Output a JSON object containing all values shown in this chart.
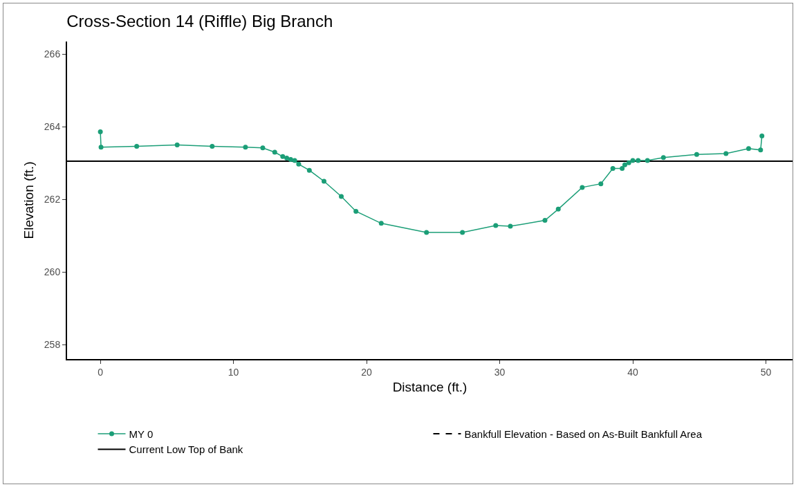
{
  "chart_data": {
    "type": "line",
    "title": "Cross-Section 14 (Riffle) Big Branch",
    "xlabel": "Distance (ft.)",
    "ylabel": "Elevation (ft.)",
    "series": [
      {
        "name": "MY 0",
        "color": "#1b9e77",
        "x": [
          0,
          0.05,
          2.73,
          5.77,
          8.4,
          10.9,
          12.2,
          13.1,
          13.7,
          14.0,
          14.3,
          14.6,
          14.9,
          15.7,
          16.8,
          18.1,
          19.2,
          21.1,
          24.5,
          27.2,
          29.7,
          30.8,
          33.4,
          34.4,
          36.2,
          37.6,
          38.5,
          39.2,
          39.4,
          39.7,
          40.0,
          40.4,
          41.1,
          42.3,
          44.8,
          47.0,
          48.7,
          49.6,
          49.7
        ],
        "values": [
          263.86,
          263.44,
          263.46,
          263.5,
          263.46,
          263.44,
          263.42,
          263.3,
          263.18,
          263.14,
          263.1,
          263.07,
          262.97,
          262.8,
          262.5,
          262.08,
          261.67,
          261.34,
          261.09,
          261.09,
          261.28,
          261.26,
          261.42,
          261.73,
          262.33,
          262.43,
          262.85,
          262.85,
          262.95,
          263.01,
          263.07,
          263.07,
          263.07,
          263.15,
          263.24,
          263.26,
          263.4,
          263.36,
          263.75
        ]
      }
    ],
    "ref_lines": [
      {
        "axis": "y",
        "value": null,
        "label": "Bankfull Elevation - Based on As-Built Bankfull Area",
        "color": "#000000",
        "line_style": "dashed"
      },
      {
        "axis": "y",
        "value": 263.05,
        "label": "Current Low Top of Bank",
        "color": "#000000",
        "line_style": "solid"
      }
    ],
    "xlim": [
      -2.5,
      52
    ],
    "xticks": [
      0,
      10,
      20,
      30,
      40,
      50
    ],
    "ylim": [
      257.6,
      266.35
    ],
    "yticks": [
      258,
      260,
      262,
      264,
      266
    ],
    "grid": false,
    "legend": "bottom",
    "marker": "circle",
    "line_style": "solid"
  }
}
